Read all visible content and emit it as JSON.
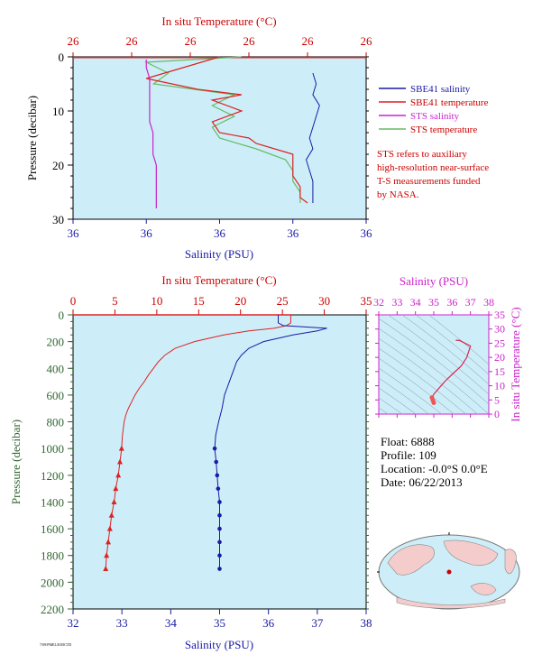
{
  "chart_data": [
    {
      "type": "line",
      "panel": "surface",
      "title": "In situ Temperature (°C)",
      "xlabel": "Salinity (PSU)",
      "ylabel": "Pressure (decibar)",
      "ylim": [
        30,
        0
      ],
      "salinity_ticks": [
        "36",
        "36",
        "36",
        "36",
        "36"
      ],
      "temperature_ticks": [
        "26",
        "26",
        "26",
        "26",
        "26",
        "26"
      ],
      "pressure_ticks": [
        "0",
        "10",
        "20",
        "30"
      ],
      "legend": [
        {
          "label": "SBE41 salinity",
          "color": "#1a1aa6"
        },
        {
          "label": "SBE41 temperature",
          "color": "#dd2222"
        },
        {
          "label": "STS salinity",
          "color": "#cc22cc"
        },
        {
          "label": "STS temperature",
          "color": "#66bb66"
        }
      ],
      "note": [
        "STS refers to auxiliary",
        "high-resolution near-surface",
        "T-S measurements funded",
        "by NASA."
      ],
      "series": [
        {
          "name": "SBE41 salinity",
          "pressure": [
            3,
            5,
            7,
            9,
            11,
            13,
            15,
            17,
            19,
            21,
            23,
            25,
            27
          ],
          "salinity": [
            36.36,
            36.365,
            36.36,
            36.37,
            36.365,
            36.36,
            36.355,
            36.36,
            36.35,
            36.355,
            36.36,
            36.36,
            36.36
          ]
        },
        {
          "name": "SBE41 temperature",
          "pressure": [
            0,
            2,
            4,
            6,
            7,
            8,
            10,
            12,
            14,
            15,
            16,
            18,
            20,
            22,
            24,
            26,
            27
          ],
          "temperature": [
            26.15,
            26.1,
            26.05,
            26.12,
            26.18,
            26.14,
            26.18,
            26.14,
            26.15,
            26.19,
            26.2,
            26.25,
            26.25,
            26.25,
            26.26,
            26.26,
            26.27
          ]
        },
        {
          "name": "STS salinity",
          "pressure": [
            0.5,
            2,
            4,
            6,
            8,
            10,
            12,
            14,
            16,
            18,
            20,
            22,
            24,
            26,
            28
          ],
          "salinity": [
            36.11,
            36.11,
            36.115,
            36.115,
            36.115,
            36.115,
            36.115,
            36.12,
            36.12,
            36.12,
            36.125,
            36.125,
            36.125,
            36.125,
            36.125
          ]
        },
        {
          "name": "STS temperature",
          "pressure": [
            0,
            1,
            3,
            5,
            7,
            9,
            11,
            13,
            15,
            17,
            19,
            21,
            23,
            25,
            27
          ],
          "temperature": [
            26.18,
            26.05,
            26.08,
            26.06,
            26.17,
            26.14,
            26.17,
            26.14,
            26.15,
            26.2,
            26.24,
            26.25,
            26.25,
            26.26,
            26.26
          ]
        }
      ]
    },
    {
      "type": "line",
      "panel": "profile",
      "title": "In situ Temperature (°C)",
      "xlabel": "Salinity (PSU)",
      "ylabel": "Pressure (decibar)",
      "temperature_lim": [
        0,
        35
      ],
      "salinity_lim": [
        32,
        38
      ],
      "ylim": [
        2200,
        0
      ],
      "temperature_ticks": [
        "0",
        "5",
        "10",
        "15",
        "20",
        "25",
        "30",
        "35"
      ],
      "salinity_ticks": [
        "32",
        "33",
        "34",
        "35",
        "36",
        "37",
        "38"
      ],
      "pressure_ticks": [
        "0",
        "200",
        "400",
        "600",
        "800",
        "1000",
        "1200",
        "1400",
        "1600",
        "1800",
        "2000",
        "2200"
      ],
      "series": [
        {
          "name": "temperature",
          "color": "#dd2222",
          "pressure": [
            0,
            20,
            40,
            60,
            80,
            100,
            120,
            150,
            200,
            250,
            300,
            350,
            400,
            450,
            500,
            550,
            600,
            650,
            700,
            750,
            800,
            900,
            1000,
            1100,
            1200,
            1300,
            1400,
            1500,
            1600,
            1700,
            1800,
            1900
          ],
          "temperature": [
            26.0,
            26.0,
            26.0,
            26.0,
            25.5,
            24.0,
            21.0,
            18.0,
            14.5,
            12.2,
            11.0,
            10.2,
            9.6,
            9.0,
            8.5,
            7.9,
            7.4,
            7.0,
            6.6,
            6.3,
            6.1,
            5.9,
            5.8,
            5.6,
            5.4,
            5.1,
            4.9,
            4.6,
            4.4,
            4.2,
            4.0,
            3.9
          ]
        },
        {
          "name": "salinity",
          "color": "#1a1aa6",
          "pressure": [
            0,
            20,
            40,
            60,
            80,
            100,
            120,
            150,
            200,
            250,
            300,
            350,
            400,
            450,
            500,
            550,
            600,
            700,
            800,
            900,
            1000,
            1100,
            1200,
            1300,
            1400,
            1500,
            1600,
            1700,
            1800,
            1900
          ],
          "salinity": [
            36.2,
            36.2,
            36.2,
            36.2,
            36.3,
            37.2,
            37.0,
            36.5,
            35.9,
            35.6,
            35.45,
            35.35,
            35.3,
            35.25,
            35.2,
            35.15,
            35.1,
            35.05,
            34.98,
            34.92,
            34.9,
            34.93,
            34.95,
            34.97,
            35.0,
            35.0,
            35.0,
            35.0,
            35.0,
            35.0
          ]
        }
      ],
      "markers_from_pressure": 1000
    },
    {
      "type": "line",
      "panel": "ts-diagram",
      "title": "Salinity (PSU)",
      "ylabel": "In situ Temperature (°C)",
      "salinity_ticks": [
        "32",
        "33",
        "34",
        "35",
        "36",
        "37",
        "38"
      ],
      "temperature_ticks": [
        "0",
        "5",
        "10",
        "15",
        "20",
        "25",
        "30",
        "35"
      ],
      "xlim": [
        32,
        38
      ],
      "ylim": [
        0,
        35
      ],
      "series": [
        {
          "name": "T-S",
          "color": "#dd2255",
          "salinity": [
            36.2,
            36.4,
            37.0,
            36.8,
            36.5,
            36.0,
            35.6,
            35.4,
            35.2,
            35.0,
            34.9,
            34.95,
            35.0
          ],
          "temperature": [
            26.0,
            26.0,
            24.0,
            20.0,
            17.0,
            14.0,
            11.5,
            10.0,
            8.5,
            7.0,
            5.8,
            4.8,
            4.0
          ]
        }
      ]
    }
  ],
  "float_info": {
    "float": "Float:  6888",
    "profile": "Profile:  109",
    "location": "Location:  -0.0°S   0.0°E",
    "date": "Date:  06/22/2013"
  },
  "footer": "7/09/PMEL/IODCTD"
}
